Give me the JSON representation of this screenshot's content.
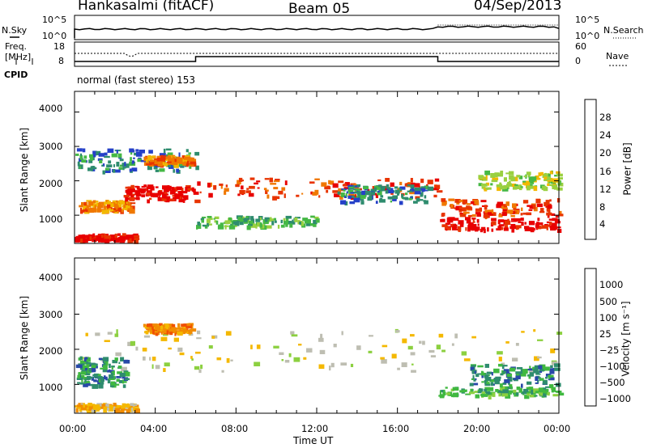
{
  "header": {
    "station": "Hankasalmi (fitACF)",
    "beam": "Beam 05",
    "date": "04/Sep/2013"
  },
  "top_panels": {
    "nsky_label": "N.Sky",
    "nsky_ticks": [
      "10^5",
      "10^0"
    ],
    "nsearch_label": "N.Search",
    "nsearch_ticks": [
      "10^5",
      "10^0"
    ],
    "freq_label_1": "Freq.",
    "freq_label_2": "[MHz]",
    "freq_ticks": [
      "18",
      "8"
    ],
    "nave_label": "Nave",
    "nave_ticks": [
      "60",
      "0"
    ],
    "cpid_label": "CPID",
    "cpid_text": "normal (fast stereo) 153"
  },
  "chart_data": [
    {
      "type": "heatmap",
      "title": "",
      "xlabel": "Time UT",
      "ylabel": "Slant Range [km]",
      "x_ticks": [
        "00:00",
        "04:00",
        "08:00",
        "12:00",
        "16:00",
        "20:00",
        "00:00"
      ],
      "y_ticks": [
        "1000",
        "2000",
        "3000",
        "4000"
      ],
      "xlim_hours": [
        0,
        24
      ],
      "ylim_km": [
        180,
        4600
      ],
      "colorbar": {
        "label": "Power [dB]",
        "ticks": [
          "4",
          "8",
          "12",
          "16",
          "20",
          "24",
          "28"
        ],
        "colors": [
          "#0000ff",
          "#2540c8",
          "#2e8c6e",
          "#45b845",
          "#9ad040",
          "#f2b800",
          "#f07800",
          "#e83400",
          "#e80000"
        ]
      },
      "regions": [
        {
          "t0": 0.0,
          "t1": 3.0,
          "r0": 300,
          "r1": 480,
          "level": 8
        },
        {
          "t0": 0.2,
          "t1": 2.8,
          "r0": 1150,
          "r1": 1450,
          "level": 6
        },
        {
          "t0": 0.0,
          "t1": 6.0,
          "r0": 2300,
          "r1": 2950,
          "level": 2
        },
        {
          "t0": 3.4,
          "t1": 5.8,
          "r0": 2500,
          "r1": 2750,
          "level": 6
        },
        {
          "t0": 2.4,
          "t1": 6.0,
          "r0": 1450,
          "r1": 1900,
          "level": 8
        },
        {
          "t0": 6.0,
          "t1": 18.0,
          "r0": 1550,
          "r1": 2100,
          "level": 7
        },
        {
          "t0": 6.0,
          "t1": 12.0,
          "r0": 700,
          "r1": 1000,
          "level": 3
        },
        {
          "t0": 13.0,
          "t1": 17.5,
          "r0": 1400,
          "r1": 1900,
          "level": 2
        },
        {
          "t0": 18.0,
          "t1": 24.0,
          "r0": 1000,
          "r1": 1500,
          "level": 7
        },
        {
          "t0": 18.0,
          "t1": 24.0,
          "r0": 600,
          "r1": 950,
          "level": 8
        },
        {
          "t0": 20.0,
          "t1": 24.0,
          "r0": 1800,
          "r1": 2300,
          "level": 4
        }
      ]
    },
    {
      "type": "heatmap",
      "title": "",
      "xlabel": "Time UT",
      "ylabel": "Slant Range [km]",
      "x_ticks": [
        "00:00",
        "04:00",
        "08:00",
        "12:00",
        "16:00",
        "20:00",
        "00:00"
      ],
      "y_ticks": [
        "1000",
        "2000",
        "3000",
        "4000"
      ],
      "xlim_hours": [
        0,
        24
      ],
      "ylim_km": [
        180,
        4600
      ],
      "colorbar": {
        "label": "Velocity [m s⁻¹]",
        "ticks": [
          "1000",
          "500",
          "100",
          "25",
          "−25",
          "−100",
          "−500",
          "−1000"
        ],
        "colors": [
          "#1a2ed0",
          "#2848a8",
          "#2e8c6e",
          "#40b840",
          "#8cd040",
          "#bebeb2",
          "#f4b800",
          "#f28c00",
          "#f05000",
          "#e80000"
        ]
      },
      "regions": [
        {
          "t0": 0.0,
          "t1": 24.0,
          "r0": 1400,
          "r1": 2600,
          "level": 5
        },
        {
          "t0": 0.0,
          "t1": 2.5,
          "r0": 1000,
          "r1": 1800,
          "level": 2
        },
        {
          "t0": 0.0,
          "t1": 3.0,
          "r0": 300,
          "r1": 480,
          "level": 6
        },
        {
          "t0": 3.4,
          "t1": 5.8,
          "r0": 2500,
          "r1": 2750,
          "level": 7
        },
        {
          "t0": 18.0,
          "t1": 24.0,
          "r0": 700,
          "r1": 950,
          "level": 3
        },
        {
          "t0": 19.5,
          "t1": 24.0,
          "r0": 1000,
          "r1": 1600,
          "level": 2
        }
      ]
    }
  ]
}
